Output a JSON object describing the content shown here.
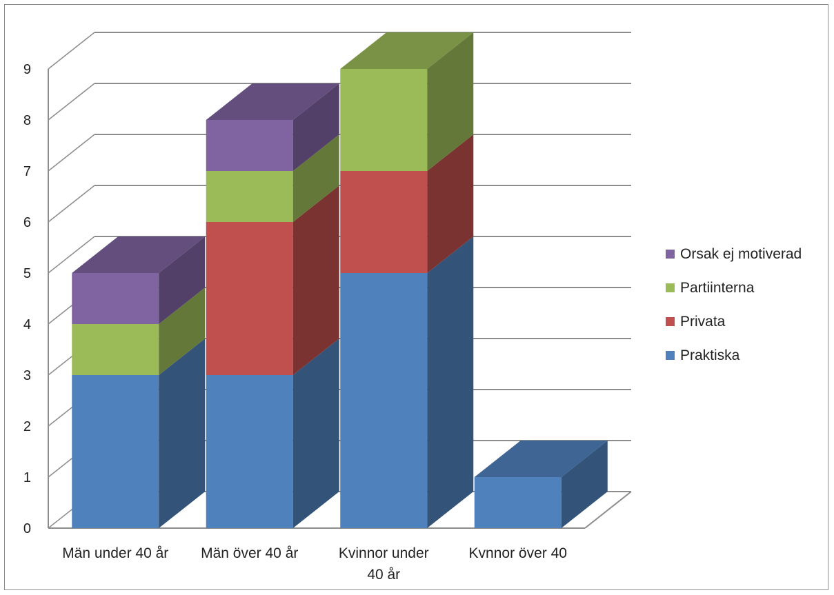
{
  "chart_data": {
    "type": "bar",
    "stacked": true,
    "three_d": true,
    "categories": [
      "Män under 40 år",
      "Män över 40 år",
      "Kvinnor under 40 år",
      "Kvnnor över 40"
    ],
    "series": [
      {
        "name": "Praktiska",
        "values": [
          3,
          3,
          5,
          1
        ],
        "color": "#4f81bd"
      },
      {
        "name": "Privata",
        "values": [
          0,
          3,
          2,
          0
        ],
        "color": "#c0504d"
      },
      {
        "name": "Partiinterna",
        "values": [
          1,
          1,
          2,
          0
        ],
        "color": "#9bbb59"
      },
      {
        "name": "Orsak ej motiverad",
        "values": [
          1,
          1,
          0,
          0
        ],
        "color": "#8064a2"
      }
    ],
    "ylim": [
      0,
      9
    ],
    "yticks": [
      "0",
      "1",
      "2",
      "3",
      "4",
      "5",
      "6",
      "7",
      "8",
      "9"
    ],
    "grid": true,
    "legend_position": "right"
  }
}
